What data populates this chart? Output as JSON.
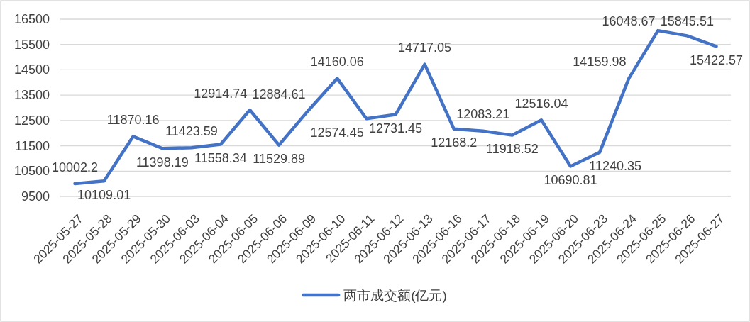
{
  "chart_data": {
    "type": "line",
    "categories": [
      "2025-05-27",
      "2025-05-28",
      "2025-05-29",
      "2025-05-30",
      "2025-06-03",
      "2025-06-04",
      "2025-06-05",
      "2025-06-06",
      "2025-06-09",
      "2025-06-10",
      "2025-06-11",
      "2025-06-12",
      "2025-06-13",
      "2025-06-16",
      "2025-06-17",
      "2025-06-18",
      "2025-06-19",
      "2025-06-20",
      "2025-06-23",
      "2025-06-24",
      "2025-06-25",
      "2025-06-26",
      "2025-06-27"
    ],
    "series": [
      {
        "name": "两市成交额(亿元)",
        "color": "#4472c4",
        "values": [
          10002.2,
          10109.01,
          11870.16,
          11398.19,
          11423.59,
          11558.34,
          12914.74,
          11529.89,
          12884.61,
          14160.06,
          12574.45,
          12731.45,
          14717.05,
          12168.2,
          12083.21,
          11918.52,
          12516.04,
          10690.81,
          11240.35,
          14159.98,
          16048.67,
          15845.51,
          15422.57
        ]
      }
    ],
    "ylim": [
      9500,
      16500
    ],
    "yticks": [
      9500,
      10500,
      11500,
      12500,
      13500,
      14500,
      15500,
      16500
    ],
    "grid": "y",
    "legend": "bottom",
    "data_labels": true,
    "marker": "none",
    "line_style": "solid"
  }
}
